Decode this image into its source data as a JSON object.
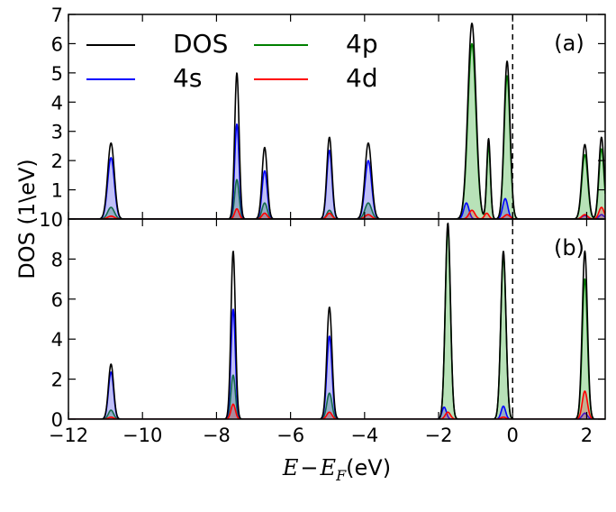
{
  "chart_data": {
    "type": "area",
    "shared_x": {
      "label_parts": [
        "E",
        "−",
        "E",
        "F",
        "(eV)"
      ],
      "lim": [
        -12,
        2.5
      ],
      "ticks": [
        -12,
        -10,
        -8,
        -6,
        -4,
        -2,
        0,
        2
      ],
      "tick_labels": [
        "−12",
        "−10",
        "−8",
        "−6",
        "−4",
        "−2",
        "0",
        "2"
      ]
    },
    "ylabel": "DOS (1\\eV)",
    "fermi_line_x": 0,
    "legend": {
      "placement": "top-left",
      "entries": [
        {
          "name": "DOS",
          "color": "#000000"
        },
        {
          "name": "4p",
          "color": "#008000"
        },
        {
          "name": "4s",
          "color": "#0000ff"
        },
        {
          "name": "4d",
          "color": "#ff0000"
        }
      ]
    },
    "panels": [
      {
        "label": "(a)",
        "ylim": [
          0,
          7
        ],
        "y_ticks": [
          0,
          1,
          2,
          3,
          4,
          5,
          6,
          7
        ],
        "y_tick_labels": [
          "10",
          "1",
          "2",
          "3",
          "4",
          "5",
          "6",
          "7"
        ],
        "series": [
          {
            "name": "DOS",
            "color": "#000000",
            "fill": false,
            "peaks": [
              [
                -10.85,
                2.6,
                0.09
              ],
              [
                -7.45,
                5.0,
                0.06
              ],
              [
                -6.7,
                2.45,
                0.07
              ],
              [
                -4.95,
                2.8,
                0.07
              ],
              [
                -3.9,
                2.6,
                0.09
              ],
              [
                -1.1,
                6.7,
                0.11
              ],
              [
                -0.65,
                2.75,
                0.05
              ],
              [
                -0.15,
                5.4,
                0.08
              ],
              [
                1.95,
                2.55,
                0.08
              ],
              [
                2.4,
                2.8,
                0.07
              ]
            ]
          },
          {
            "name": "4p",
            "color": "#008000",
            "fill": "rgba(0,150,0,0.28)",
            "peaks": [
              [
                -10.85,
                0.4,
                0.09
              ],
              [
                -7.45,
                1.35,
                0.06
              ],
              [
                -6.7,
                0.55,
                0.07
              ],
              [
                -4.95,
                0.3,
                0.07
              ],
              [
                -3.9,
                0.55,
                0.09
              ],
              [
                -1.1,
                6.0,
                0.11
              ],
              [
                -0.65,
                2.5,
                0.05
              ],
              [
                -0.15,
                4.9,
                0.08
              ],
              [
                1.95,
                2.2,
                0.08
              ],
              [
                2.4,
                2.4,
                0.07
              ]
            ]
          },
          {
            "name": "4s",
            "color": "#0000ff",
            "fill": "rgba(60,60,230,0.32)",
            "peaks": [
              [
                -10.85,
                2.1,
                0.09
              ],
              [
                -7.45,
                3.25,
                0.06
              ],
              [
                -6.7,
                1.65,
                0.07
              ],
              [
                -4.95,
                2.35,
                0.07
              ],
              [
                -3.9,
                2.0,
                0.09
              ],
              [
                -1.25,
                0.55,
                0.07
              ],
              [
                -0.2,
                0.7,
                0.07
              ],
              [
                1.95,
                0.12,
                0.08
              ],
              [
                2.4,
                0.15,
                0.07
              ]
            ]
          },
          {
            "name": "4d",
            "color": "#ff0000",
            "fill": "rgba(230,60,60,0.30)",
            "peaks": [
              [
                -10.85,
                0.1,
                0.09
              ],
              [
                -7.45,
                0.35,
                0.06
              ],
              [
                -6.7,
                0.2,
                0.07
              ],
              [
                -4.95,
                0.2,
                0.07
              ],
              [
                -3.9,
                0.15,
                0.09
              ],
              [
                -1.1,
                0.3,
                0.08
              ],
              [
                -0.7,
                0.2,
                0.06
              ],
              [
                -0.15,
                0.15,
                0.08
              ],
              [
                1.95,
                0.15,
                0.08
              ],
              [
                2.4,
                0.4,
                0.07
              ]
            ]
          }
        ]
      },
      {
        "label": "(b)",
        "ylim": [
          0,
          10
        ],
        "y_ticks": [
          0,
          2,
          4,
          6,
          8
        ],
        "y_tick_labels": [
          "0",
          "2",
          "4",
          "6",
          "8"
        ],
        "series": [
          {
            "name": "DOS",
            "color": "#000000",
            "fill": false,
            "peaks": [
              [
                -10.85,
                2.75,
                0.07
              ],
              [
                -7.55,
                8.4,
                0.06
              ],
              [
                -4.95,
                5.6,
                0.07
              ],
              [
                -1.75,
                9.8,
                0.07
              ],
              [
                -0.25,
                8.4,
                0.07
              ],
              [
                1.95,
                8.4,
                0.07
              ]
            ]
          },
          {
            "name": "4p",
            "color": "#008000",
            "fill": "rgba(0,150,0,0.28)",
            "peaks": [
              [
                -10.85,
                0.45,
                0.07
              ],
              [
                -7.55,
                2.2,
                0.06
              ],
              [
                -4.95,
                1.3,
                0.07
              ],
              [
                -1.75,
                9.6,
                0.07
              ],
              [
                -0.25,
                8.2,
                0.07
              ],
              [
                1.95,
                7.0,
                0.07
              ]
            ]
          },
          {
            "name": "4s",
            "color": "#0000ff",
            "fill": "rgba(60,60,230,0.32)",
            "peaks": [
              [
                -10.85,
                2.35,
                0.07
              ],
              [
                -7.55,
                5.5,
                0.06
              ],
              [
                -4.95,
                4.15,
                0.07
              ],
              [
                -1.85,
                0.6,
                0.06
              ],
              [
                -0.25,
                0.65,
                0.06
              ],
              [
                1.95,
                0.3,
                0.07
              ]
            ]
          },
          {
            "name": "4d",
            "color": "#ff0000",
            "fill": "rgba(230,60,60,0.30)",
            "peaks": [
              [
                -10.85,
                0.1,
                0.07
              ],
              [
                -7.55,
                0.75,
                0.06
              ],
              [
                -4.95,
                0.35,
                0.07
              ],
              [
                -1.75,
                0.35,
                0.07
              ],
              [
                -0.25,
                0.1,
                0.07
              ],
              [
                1.95,
                1.4,
                0.07
              ]
            ]
          }
        ]
      }
    ]
  }
}
